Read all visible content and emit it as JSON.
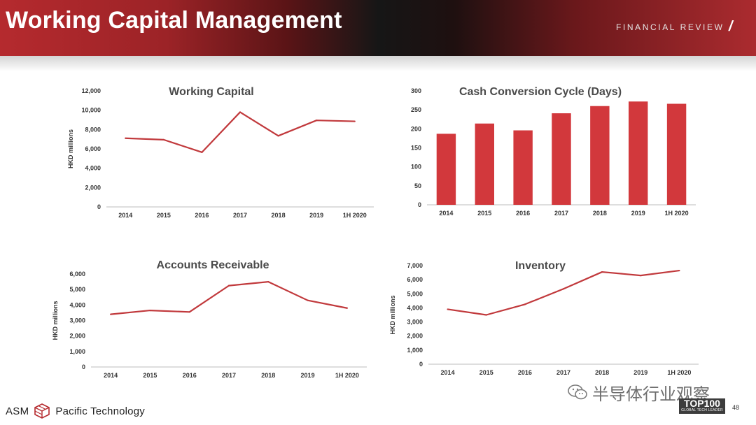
{
  "header": {
    "title": "Working Capital Management",
    "section_tag": "FINANCIAL REVIEW",
    "slash": "/"
  },
  "footer": {
    "company_left": "ASM",
    "company_right": "Pacific Technology",
    "watermark_text": "半导体行业观察",
    "badge_big": "TOP100",
    "badge_small": "GLOBAL TECH LEADER",
    "page_number": "48"
  },
  "colors": {
    "brand_red": "#b52a2e",
    "bar_red": "#d2383c",
    "line_red": "#c1393c",
    "axis": "#bdbdbd"
  },
  "chart_data": [
    {
      "id": "working-capital",
      "type": "line",
      "title": "Working Capital",
      "ylabel": "HKD millions",
      "categories": [
        "2014",
        "2015",
        "2016",
        "2017",
        "2018",
        "2019",
        "1H 2020"
      ],
      "values": [
        7100,
        6950,
        5650,
        9800,
        7350,
        8950,
        8850
      ],
      "yticks": [
        "0",
        "2,000",
        "4,000",
        "6,000",
        "8,000",
        "10,000",
        "12,000"
      ],
      "ylim": [
        0,
        12000
      ]
    },
    {
      "id": "cash-conversion-cycle",
      "type": "bar",
      "title": "Cash Conversion Cycle (Days)",
      "ylabel": "",
      "categories": [
        "2014",
        "2015",
        "2016",
        "2017",
        "2018",
        "2019",
        "1H 2020"
      ],
      "values": [
        187,
        214,
        196,
        241,
        260,
        272,
        266
      ],
      "yticks": [
        "0",
        "50",
        "100",
        "150",
        "200",
        "250",
        "300"
      ],
      "ylim": [
        0,
        300
      ]
    },
    {
      "id": "accounts-receivable",
      "type": "line",
      "title": "Accounts Receivable",
      "ylabel": "HKD millions",
      "categories": [
        "2014",
        "2015",
        "2016",
        "2017",
        "2018",
        "2019",
        "1H 2020"
      ],
      "values": [
        3400,
        3650,
        3550,
        5250,
        5500,
        4300,
        3800
      ],
      "yticks": [
        "0",
        "1,000",
        "2,000",
        "3,000",
        "4,000",
        "5,000",
        "6,000"
      ],
      "ylim": [
        0,
        6000
      ]
    },
    {
      "id": "inventory",
      "type": "line",
      "title": "Inventory",
      "ylabel": "HKD millions",
      "categories": [
        "2014",
        "2015",
        "2016",
        "2017",
        "2018",
        "2019",
        "1H 2020"
      ],
      "values": [
        3900,
        3500,
        4250,
        5350,
        6550,
        6300,
        6650
      ],
      "yticks": [
        "0",
        "1,000",
        "2,000",
        "3,000",
        "4,000",
        "5,000",
        "6,000",
        "7,000"
      ],
      "ylim": [
        0,
        7000
      ]
    }
  ]
}
